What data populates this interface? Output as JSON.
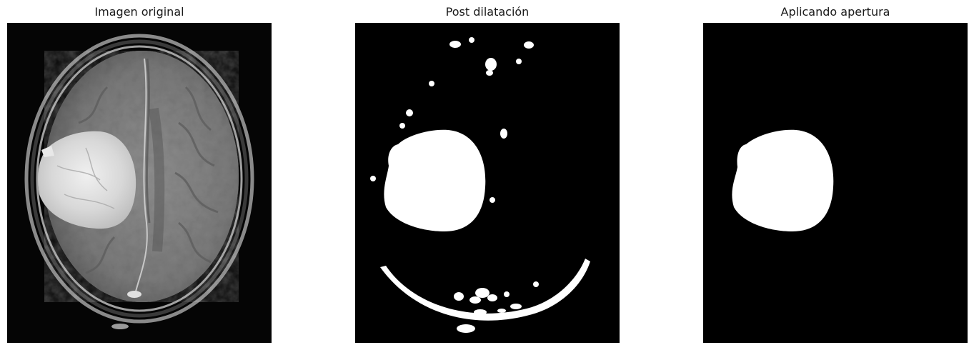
{
  "figure": {
    "panels": [
      {
        "title": "Imagen original"
      },
      {
        "title": "Post dilatación"
      },
      {
        "title": "Aplicando apertura"
      }
    ]
  }
}
